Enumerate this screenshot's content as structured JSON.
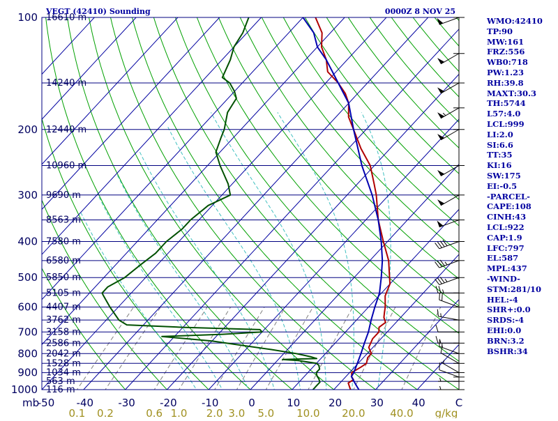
{
  "header": {
    "title": "VEGT (42410) Sounding",
    "datetime": "0000Z  8 NOV 25"
  },
  "colors": {
    "isobar": "#000080",
    "isotherm": "#0000a0",
    "dry_adiabat": "#00a000",
    "moist_adiabat": "#40c0c0",
    "mixing_ratio": "#808080",
    "temperature": "#b00000",
    "dewpoint": "#005000",
    "parcel": "#0000b0",
    "wind": "#000000"
  },
  "chart_data": {
    "type": "line",
    "title": "VEGT (42410) Sounding",
    "xlabel": "",
    "ylabel": "",
    "y_scale": "log-pressure",
    "ylim": [
      1000,
      100
    ],
    "xlim": [
      -50,
      50
    ],
    "pressure_ticks": [
      100,
      200,
      300,
      400,
      500,
      600,
      700,
      800,
      900,
      1000
    ],
    "pressure_axis_unit": "mb",
    "temperature_ticks": [
      -50,
      -40,
      -30,
      -20,
      -10,
      0,
      10,
      20,
      30,
      40
    ],
    "temperature_axis_unit": "C",
    "mixing_ratio_ticks": [
      "0.1",
      "0.2",
      "0.6",
      "1.0",
      "2.0",
      "3.0",
      "5.0",
      "10.0",
      "20.0",
      "40.0"
    ],
    "mixing_ratio_unit": "g/kg",
    "height_labels": [
      {
        "p": 100,
        "label": "16610 m"
      },
      {
        "p": 150,
        "label": "14240 m"
      },
      {
        "p": 200,
        "label": "12440 m"
      },
      {
        "p": 250,
        "label": "10960 m"
      },
      {
        "p": 300,
        "label": "9690 m"
      },
      {
        "p": 350,
        "label": "8563 m"
      },
      {
        "p": 400,
        "label": "7580 m"
      },
      {
        "p": 450,
        "label": "6580 m"
      },
      {
        "p": 500,
        "label": "5850 m"
      },
      {
        "p": 550,
        "label": "5105 m"
      },
      {
        "p": 600,
        "label": "4407 m"
      },
      {
        "p": 650,
        "label": "3762 m"
      },
      {
        "p": 700,
        "label": "3158 m"
      },
      {
        "p": 750,
        "label": "2586 m"
      },
      {
        "p": 800,
        "label": "2042 m"
      },
      {
        "p": 850,
        "label": "1528 m"
      },
      {
        "p": 900,
        "label": "1034 m"
      },
      {
        "p": 950,
        "label": "563 m"
      },
      {
        "p": 1000,
        "label": "116 m"
      }
    ],
    "series": [
      {
        "key": "temperature",
        "points": [
          [
            1000,
            24
          ],
          [
            980,
            23
          ],
          [
            960,
            22
          ],
          [
            940,
            22.5
          ],
          [
            925,
            21.5
          ],
          [
            900,
            20.5
          ],
          [
            870,
            21.5
          ],
          [
            850,
            22
          ],
          [
            820,
            21
          ],
          [
            800,
            21
          ],
          [
            770,
            19
          ],
          [
            730,
            18
          ],
          [
            700,
            18
          ],
          [
            680,
            17
          ],
          [
            660,
            17.5
          ],
          [
            640,
            16
          ],
          [
            620,
            15
          ],
          [
            600,
            14
          ],
          [
            560,
            11.5
          ],
          [
            520,
            10
          ],
          [
            500,
            8.5
          ],
          [
            450,
            4.5
          ],
          [
            400,
            -1
          ],
          [
            350,
            -7
          ],
          [
            300,
            -13
          ],
          [
            280,
            -16
          ],
          [
            250,
            -21
          ],
          [
            225,
            -27
          ],
          [
            200,
            -33
          ],
          [
            185,
            -37
          ],
          [
            170,
            -40
          ],
          [
            160,
            -43
          ],
          [
            150,
            -47
          ],
          [
            140,
            -52
          ],
          [
            130,
            -55
          ],
          [
            120,
            -59
          ],
          [
            110,
            -62
          ],
          [
            100,
            -67
          ]
        ]
      },
      {
        "key": "dewpoint",
        "points": [
          [
            1000,
            15
          ],
          [
            980,
            15
          ],
          [
            955,
            15
          ],
          [
            935,
            14
          ],
          [
            920,
            13
          ],
          [
            900,
            12
          ],
          [
            880,
            12
          ],
          [
            860,
            11
          ],
          [
            850,
            10
          ],
          [
            835,
            5
          ],
          [
            830,
            1
          ],
          [
            825,
            9
          ],
          [
            815,
            7
          ],
          [
            800,
            3
          ],
          [
            780,
            -4
          ],
          [
            760,
            -12
          ],
          [
            740,
            -20
          ],
          [
            720,
            -33
          ],
          [
            710,
            -19
          ],
          [
            700,
            -10
          ],
          [
            690,
            -11
          ],
          [
            680,
            -30
          ],
          [
            670,
            -44
          ],
          [
            650,
            -47
          ],
          [
            600,
            -52
          ],
          [
            560,
            -56
          ],
          [
            550,
            -57
          ],
          [
            530,
            -57
          ],
          [
            500,
            -55
          ],
          [
            460,
            -54
          ],
          [
            430,
            -53
          ],
          [
            400,
            -53
          ],
          [
            370,
            -52
          ],
          [
            350,
            -52
          ],
          [
            320,
            -51
          ],
          [
            300,
            -48
          ],
          [
            280,
            -51
          ],
          [
            250,
            -57
          ],
          [
            230,
            -61
          ],
          [
            210,
            -63
          ],
          [
            200,
            -64
          ],
          [
            180,
            -67
          ],
          [
            165,
            -68
          ],
          [
            158,
            -70
          ],
          [
            150,
            -73
          ],
          [
            145,
            -76
          ],
          [
            130,
            -78
          ],
          [
            120,
            -80
          ],
          [
            110,
            -81
          ],
          [
            100,
            -83
          ]
        ]
      },
      {
        "key": "parcel",
        "points": [
          [
            1000,
            26
          ],
          [
            975,
            24.5
          ],
          [
            950,
            23
          ],
          [
            922,
            21.3
          ],
          [
            900,
            21
          ],
          [
            850,
            19.8
          ],
          [
            800,
            18.5
          ],
          [
            750,
            17
          ],
          [
            700,
            15.5
          ],
          [
            650,
            13.5
          ],
          [
            600,
            11.5
          ],
          [
            550,
            9.5
          ],
          [
            500,
            6.5
          ],
          [
            450,
            3
          ],
          [
            400,
            -1.5
          ],
          [
            350,
            -7
          ],
          [
            300,
            -14
          ],
          [
            250,
            -23
          ],
          [
            200,
            -33
          ],
          [
            170,
            -40
          ],
          [
            150,
            -47
          ],
          [
            130,
            -55
          ],
          [
            120,
            -60
          ],
          [
            110,
            -64
          ],
          [
            100,
            -70
          ]
        ]
      }
    ],
    "winds": [
      {
        "p": 1000,
        "dir": 270,
        "spd": 5
      },
      {
        "p": 950,
        "dir": 270,
        "spd": 5
      },
      {
        "p": 925,
        "dir": 290,
        "spd": 10
      },
      {
        "p": 900,
        "dir": 300,
        "spd": 5
      },
      {
        "p": 850,
        "dir": 300,
        "spd": 10
      },
      {
        "p": 800,
        "dir": 290,
        "spd": 15
      },
      {
        "p": 750,
        "dir": 270,
        "spd": 15
      },
      {
        "p": 700,
        "dir": 270,
        "spd": 10
      },
      {
        "p": 650,
        "dir": 280,
        "spd": 15
      },
      {
        "p": 600,
        "dir": 290,
        "spd": 20
      },
      {
        "p": 550,
        "dir": 270,
        "spd": 25
      },
      {
        "p": 500,
        "dir": 250,
        "spd": 35
      },
      {
        "p": 450,
        "dir": 250,
        "spd": 35
      },
      {
        "p": 400,
        "dir": 250,
        "spd": 40
      },
      {
        "p": 350,
        "dir": 250,
        "spd": 50
      },
      {
        "p": 300,
        "dir": 240,
        "spd": 50
      },
      {
        "p": 250,
        "dir": 240,
        "spd": 50
      },
      {
        "p": 200,
        "dir": 240,
        "spd": 50
      },
      {
        "p": 175,
        "dir": 240,
        "spd": 55
      },
      {
        "p": 150,
        "dir": 240,
        "spd": 50
      },
      {
        "p": 125,
        "dir": 240,
        "spd": 50
      },
      {
        "p": 100,
        "dir": 250,
        "spd": 50
      }
    ]
  },
  "indices": [
    "WMO:42410",
    "TP:90",
    "MW:161",
    "FRZ:556",
    "WB0:718",
    "PW:1.23",
    "RH:39.8",
    "MAXT:30.3",
    "TH:5744",
    "L57:4.0",
    "LCL:999",
    "LI:2.0",
    "SI:6.6",
    "TT:35",
    "KI:16",
    "SW:175",
    "EI:-0.5",
    "-PARCEL-",
    "CAPE:108",
    "CINH:43",
    "LCL:922",
    "CAP:1.9",
    "LFC:797",
    "EL:587",
    "MPL:437",
    "-WIND-",
    "STM:281/10",
    "HEL:-4",
    "SHR+:0.0",
    "SRDS:-4",
    "EHI:0.0",
    "BRN:3.2",
    "BSHR:34"
  ]
}
